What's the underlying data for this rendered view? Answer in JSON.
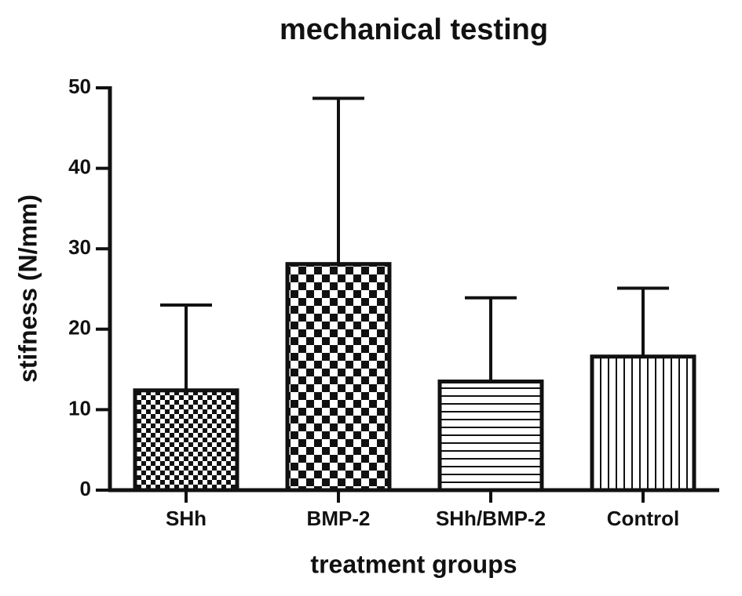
{
  "chart_data": {
    "type": "bar",
    "title": "mechanical testing",
    "x_label": "treatment groups",
    "y_label": "stifness (N/mm)",
    "categories": [
      "SHh",
      "BMP-2",
      "SHh/BMP-2",
      "Control"
    ],
    "values": [
      12.4,
      28.1,
      13.5,
      16.6
    ],
    "errors": [
      10.6,
      20.6,
      10.4,
      8.5
    ],
    "patterns": [
      "checker-fine",
      "checker",
      "horizontal",
      "vertical"
    ],
    "color": "#111111",
    "ylim": [
      0,
      50
    ],
    "yticks": [
      0,
      10,
      20,
      30,
      40,
      50
    ]
  }
}
